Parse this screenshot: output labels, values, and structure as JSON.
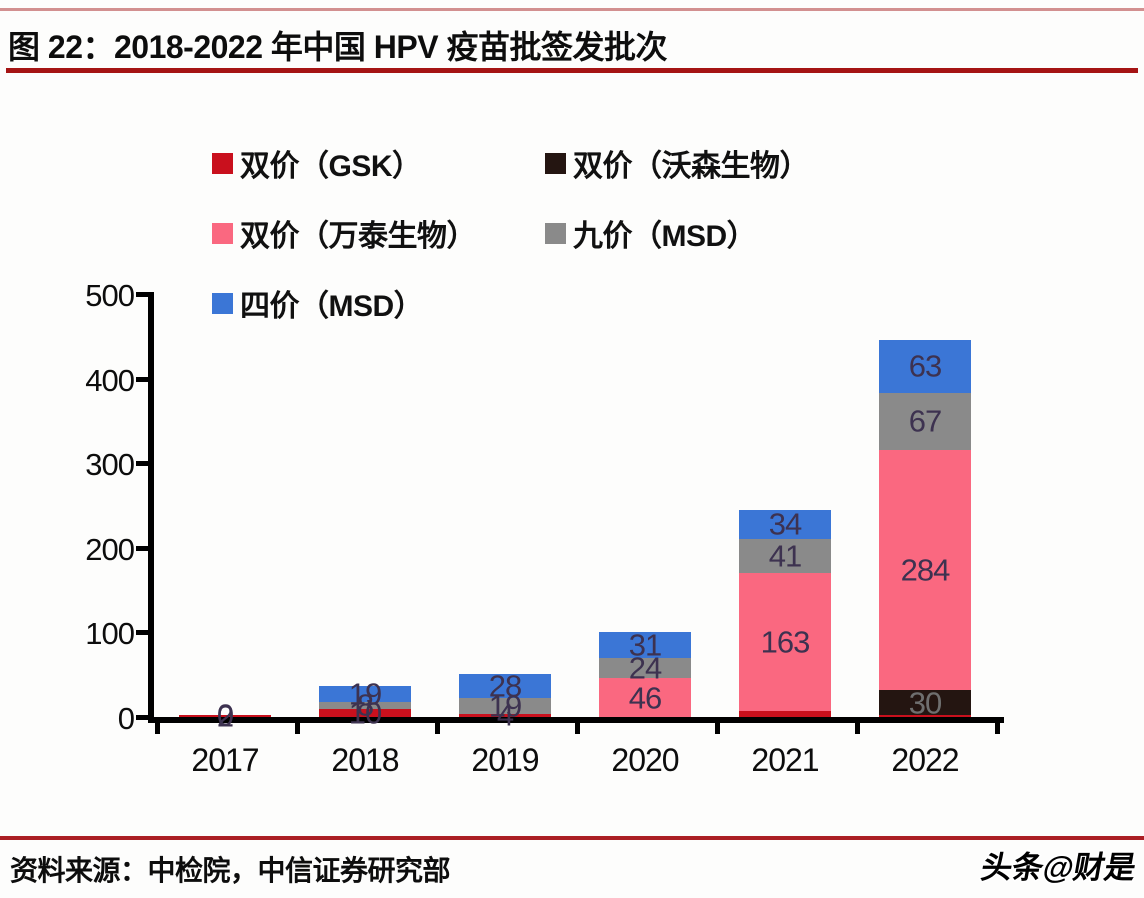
{
  "page": {
    "title": "图 22：2018-2022 年中国 HPV 疫苗批签发批次",
    "source_note": "资料来源：中检院，中信证券研究部",
    "watermark": "头条@财是"
  },
  "colors": {
    "top_rule": "#d29090",
    "title_underline": "#a51414",
    "bottom_rule": "#ab1f24",
    "axis": "#000000",
    "bar_label_default": "#3d3250",
    "bar_label_on_dark": "#6f6f6f",
    "series": {
      "gsk_red": "#c9101d",
      "watson_dark": "#241511",
      "wantai_pink": "#fa6880",
      "nine_valent_gray": "#8a8a8a",
      "four_valent_blue": "#3b76d6"
    }
  },
  "legend": {
    "items": [
      {
        "label": "双价（GSK）",
        "color_key": "gsk_red"
      },
      {
        "label": "双价（沃森生物）",
        "color_key": "watson_dark"
      },
      {
        "label": "双价（万泰生物）",
        "color_key": "wantai_pink"
      },
      {
        "label": "九价（MSD）",
        "color_key": "nine_valent_gray"
      },
      {
        "label": "四价（MSD）",
        "color_key": "four_valent_blue"
      }
    ]
  },
  "chart_data": {
    "type": "bar",
    "stacked": true,
    "title": "2018-2022 年中国 HPV 疫苗批签发批次",
    "categories": [
      "2017",
      "2018",
      "2019",
      "2020",
      "2021",
      "2022"
    ],
    "ylim": [
      0,
      500
    ],
    "y_ticks": [
      0,
      100,
      200,
      300,
      400,
      500
    ],
    "grid": false,
    "legend_position": "top-left",
    "series": [
      {
        "name": "双价（GSK）",
        "color_key": "gsk_red",
        "values": [
          2,
          10,
          4,
          0,
          7,
          2
        ],
        "printed_labels": [
          "2",
          "10",
          "4",
          "",
          "",
          ""
        ]
      },
      {
        "name": "双价（沃森生物）",
        "color_key": "watson_dark",
        "values": [
          0,
          0,
          0,
          0,
          0,
          30
        ],
        "printed_labels": [
          "",
          "",
          "",
          "",
          "",
          "30"
        ],
        "label_color_key": "bar_label_on_dark"
      },
      {
        "name": "双价（万泰生物）",
        "color_key": "wantai_pink",
        "values": [
          0,
          0,
          0,
          46,
          163,
          284
        ],
        "printed_labels": [
          "",
          "",
          "",
          "46",
          "163",
          "284"
        ]
      },
      {
        "name": "九价（MSD）",
        "color_key": "nine_valent_gray",
        "values": [
          0,
          8,
          19,
          24,
          41,
          67
        ],
        "printed_labels": [
          "0",
          "8",
          "19",
          "24",
          "41",
          "67"
        ]
      },
      {
        "name": "四价（MSD）",
        "color_key": "four_valent_blue",
        "values": [
          0,
          19,
          28,
          31,
          34,
          63
        ],
        "printed_labels": [
          "",
          "19",
          "28",
          "31",
          "34",
          "63"
        ]
      }
    ]
  }
}
